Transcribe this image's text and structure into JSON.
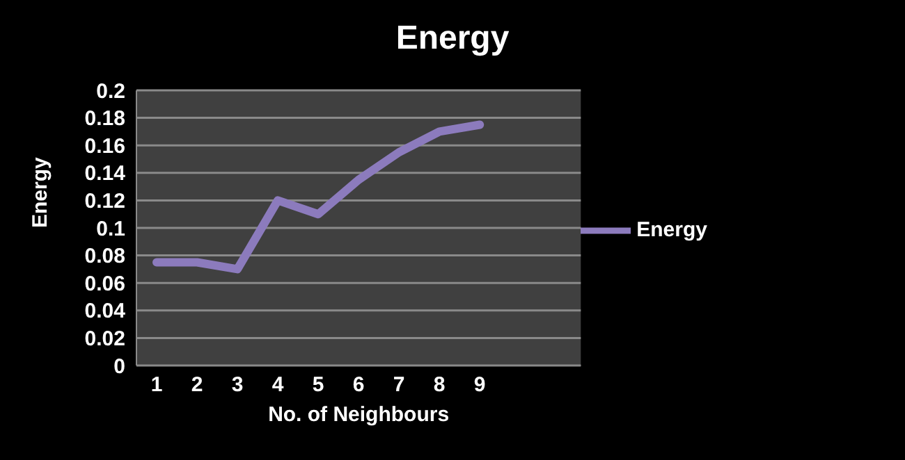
{
  "chart_data": {
    "type": "line",
    "title": "Energy",
    "xlabel": "No. of Neighbours",
    "ylabel": "Energy",
    "categories": [
      "1",
      "2",
      "3",
      "4",
      "5",
      "6",
      "7",
      "8",
      "9",
      null,
      null
    ],
    "series": [
      {
        "name": "Energy",
        "color": "#8c7bbd",
        "values": [
          0.075,
          0.075,
          0.07,
          0.12,
          0.11,
          0.135,
          0.155,
          0.17,
          0.175,
          null,
          null
        ]
      }
    ],
    "ylim": [
      0,
      0.2
    ],
    "yticks": [
      0,
      0.02,
      0.04,
      0.06,
      0.08,
      0.1,
      0.12,
      0.14,
      0.16,
      0.18,
      0.2
    ],
    "grid": "y",
    "legend": "right",
    "marker": "none"
  }
}
